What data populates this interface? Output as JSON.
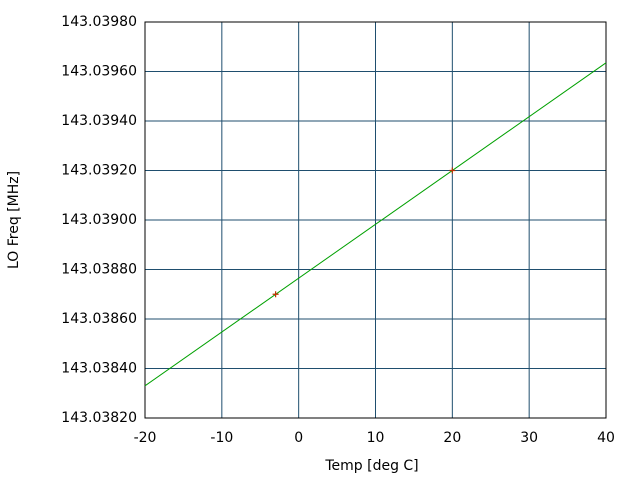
{
  "chart_data": {
    "type": "line",
    "xlabel": "Temp [deg C]",
    "ylabel": "LO Freq [MHz]",
    "xlim": [
      -20,
      40
    ],
    "xticks": [
      -20,
      -10,
      0,
      10,
      20,
      30,
      40
    ],
    "ylim": [
      143.0382,
      143.0398
    ],
    "yticks": [
      {
        "value": 143.0382,
        "label": "143.03820"
      },
      {
        "value": 143.0384,
        "label": "143.03840"
      },
      {
        "value": 143.0386,
        "label": "143.03860"
      },
      {
        "value": 143.0388,
        "label": "143.03880"
      },
      {
        "value": 143.039,
        "label": "143.03900"
      },
      {
        "value": 143.0392,
        "label": "143.03920"
      },
      {
        "value": 143.0394,
        "label": "143.03940"
      },
      {
        "value": 143.0396,
        "label": "143.03960"
      },
      {
        "value": 143.0398,
        "label": "143.03980"
      }
    ],
    "grid": true,
    "grid_color": "#1f4e6e",
    "series": [
      {
        "style": "line",
        "color": "#00a000",
        "x": [
          -20,
          40
        ],
        "values": [
          143.03833,
          143.039635
        ]
      },
      {
        "style": "points",
        "color": "#c03000",
        "x": [
          -3,
          20
        ],
        "values": [
          143.0387,
          143.0392
        ]
      }
    ]
  }
}
